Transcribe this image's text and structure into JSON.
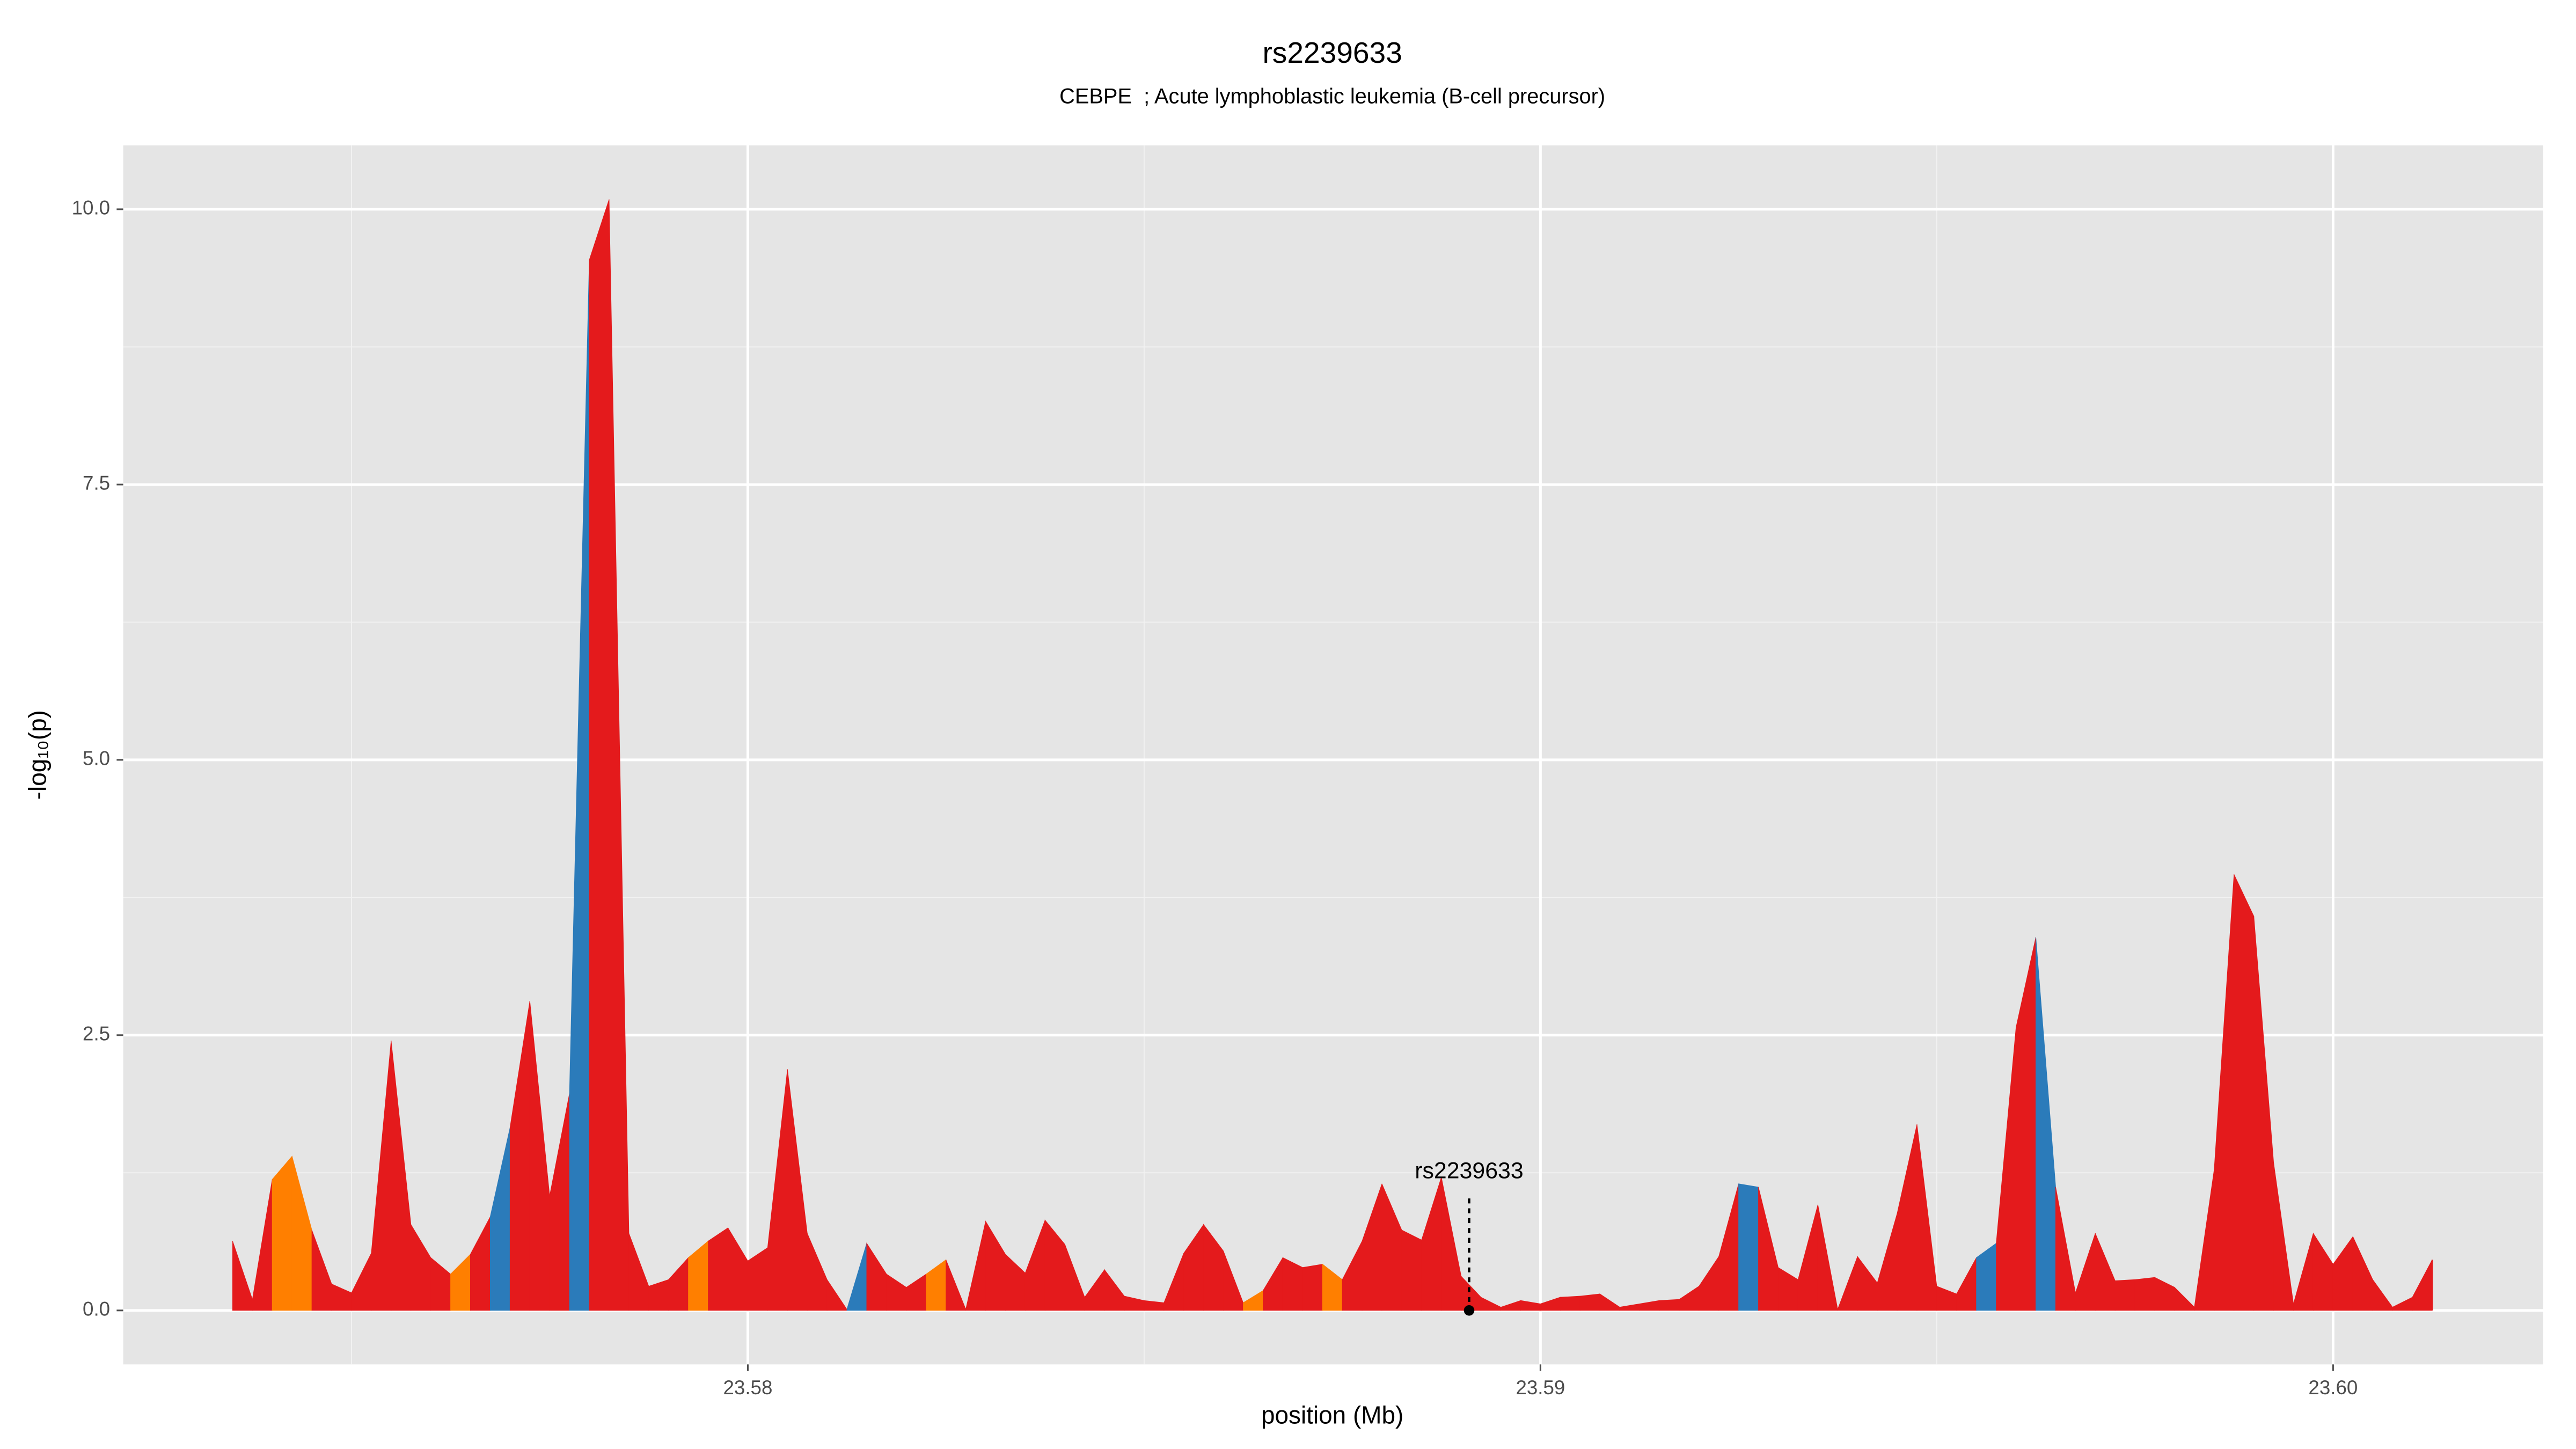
{
  "chart_data": {
    "type": "area",
    "title": "rs2239633",
    "subtitle": "CEBPE  ; Acute lymphoblastic leukemia (B-cell precursor)",
    "x_label": "position (Mb)",
    "y_label": "-log₁₀(p)",
    "xlim": [
      23.57212,
      23.60265
    ],
    "ylim": [
      -0.49,
      10.58
    ],
    "xticks": [
      23.58,
      23.59,
      {
        "value": 23.6,
        "label": "23.60"
      }
    ],
    "yticks": [
      {
        "value": 0,
        "label": "0.0"
      },
      {
        "value": 2.5,
        "label": "2.5"
      },
      {
        "value": 5,
        "label": "5.0"
      },
      {
        "value": 7.5,
        "label": "7.5"
      },
      {
        "value": 10,
        "label": "10.0"
      }
    ],
    "grid": true,
    "x": [
      23.5735,
      23.57375,
      23.574,
      23.57425,
      23.5745,
      23.57475,
      23.575,
      23.57525,
      23.5755,
      23.57575,
      23.576,
      23.57625,
      23.5765,
      23.57675,
      23.577,
      23.57725,
      23.5775,
      23.57775,
      23.578,
      23.57825,
      23.5785,
      23.57875,
      23.579,
      23.57925,
      23.5795,
      23.57975,
      23.58,
      23.58025,
      23.5805,
      23.58075,
      23.581,
      23.58125,
      23.5815,
      23.58175,
      23.582,
      23.58225,
      23.5825,
      23.58275,
      23.583,
      23.58325,
      23.5835,
      23.58375,
      23.584,
      23.58425,
      23.5845,
      23.58475,
      23.585,
      23.58525,
      23.5855,
      23.58575,
      23.586,
      23.58625,
      23.5865,
      23.58675,
      23.587,
      23.58725,
      23.5875,
      23.58775,
      23.588,
      23.58825,
      23.5885,
      23.58875,
      23.589,
      23.58925,
      23.5895,
      23.58975,
      23.59,
      23.59025,
      23.5905,
      23.59075,
      23.591,
      23.59125,
      23.5915,
      23.59175,
      23.592,
      23.59225,
      23.5925,
      23.59275,
      23.593,
      23.59325,
      23.5935,
      23.59375,
      23.594,
      23.59425,
      23.5945,
      23.59475,
      23.595,
      23.59525,
      23.5955,
      23.59575,
      23.596,
      23.59625,
      23.5965,
      23.59675,
      23.597,
      23.59725,
      23.5975,
      23.59775,
      23.598,
      23.59825,
      23.5985,
      23.59875,
      23.599,
      23.59925,
      23.5995,
      23.59975,
      23.6,
      23.60025,
      23.6005,
      23.60075,
      23.601,
      23.60125
    ],
    "values": [
      0.63,
      0.1,
      1.19,
      1.4,
      0.73,
      0.24,
      0.16,
      0.52,
      2.45,
      0.78,
      0.48,
      0.33,
      0.51,
      0.85,
      1.66,
      2.81,
      1.04,
      1.97,
      9.54,
      10.09,
      0.7,
      0.22,
      0.28,
      0.48,
      0.63,
      0.75,
      0.45,
      0.57,
      2.19,
      0.7,
      0.28,
      0.01,
      0.61,
      0.33,
      0.21,
      0.33,
      0.46,
      0.01,
      0.81,
      0.51,
      0.34,
      0.82,
      0.6,
      0.12,
      0.37,
      0.13,
      0.09,
      0.07,
      0.52,
      0.78,
      0.54,
      0.07,
      0.18,
      0.48,
      0.39,
      0.42,
      0.28,
      0.63,
      1.15,
      0.73,
      0.64,
      1.21,
      0.31,
      0.12,
      0.03,
      0.09,
      0.06,
      0.12,
      0.13,
      0.15,
      0.03,
      0.06,
      0.09,
      0.1,
      0.22,
      0.49,
      1.15,
      1.12,
      0.39,
      0.28,
      0.96,
      0.01,
      0.49,
      0.25,
      0.88,
      1.69,
      0.22,
      0.15,
      0.48,
      0.61,
      2.57,
      3.39,
      1.12,
      0.16,
      0.7,
      0.27,
      0.28,
      0.3,
      0.21,
      0.03,
      1.28,
      3.96,
      3.58,
      1.34,
      0.06,
      0.7,
      0.42,
      0.67,
      0.28,
      0.03,
      0.12,
      0.46
    ],
    "colors": [
      "#e41a1c",
      "#e41a1c",
      "#ff7f00",
      "#ff7f00",
      "#e41a1c",
      "#e41a1c",
      "#e41a1c",
      "#e41a1c",
      "#e41a1c",
      "#e41a1c",
      "#e41a1c",
      "#ff7f00",
      "#e41a1c",
      "#2b7bba",
      "#e41a1c",
      "#e41a1c",
      "#e41a1c",
      "#2b7bba",
      "#e41a1c",
      "#e41a1c",
      "#e41a1c",
      "#e41a1c",
      "#e41a1c",
      "#ff7f00",
      "#e41a1c",
      "#e41a1c",
      "#e41a1c",
      "#e41a1c",
      "#e41a1c",
      "#e41a1c",
      "#e41a1c",
      "#2b7bba",
      "#e41a1c",
      "#e41a1c",
      "#e41a1c",
      "#ff7f00",
      "#e41a1c",
      "#e41a1c",
      "#e41a1c",
      "#e41a1c",
      "#e41a1c",
      "#e41a1c",
      "#e41a1c",
      "#e41a1c",
      "#e41a1c",
      "#e41a1c",
      "#e41a1c",
      "#e41a1c",
      "#e41a1c",
      "#e41a1c",
      "#e41a1c",
      "#ff7f00",
      "#e41a1c",
      "#e41a1c",
      "#e41a1c",
      "#ff7f00",
      "#e41a1c",
      "#e41a1c",
      "#e41a1c",
      "#e41a1c",
      "#e41a1c",
      "#e41a1c",
      "#e41a1c",
      "#e41a1c",
      "#e41a1c",
      "#e41a1c",
      "#e41a1c",
      "#e41a1c",
      "#e41a1c",
      "#e41a1c",
      "#e41a1c",
      "#e41a1c",
      "#e41a1c",
      "#e41a1c",
      "#e41a1c",
      "#e41a1c",
      "#2b7bba",
      "#e41a1c",
      "#e41a1c",
      "#e41a1c",
      "#e41a1c",
      "#e41a1c",
      "#e41a1c",
      "#e41a1c",
      "#e41a1c",
      "#e41a1c",
      "#e41a1c",
      "#e41a1c",
      "#2b7bba",
      "#e41a1c",
      "#e41a1c",
      "#2b7bba",
      "#e41a1c",
      "#e41a1c",
      "#e41a1c",
      "#e41a1c",
      "#e41a1c",
      "#e41a1c",
      "#e41a1c",
      "#e41a1c",
      "#e41a1c",
      "#e41a1c",
      "#e41a1c",
      "#e41a1c",
      "#e41a1c",
      "#e41a1c",
      "#e41a1c",
      "#e41a1c",
      "#e41a1c",
      "#e41a1c",
      "#e41a1c",
      "#e41a1c"
    ],
    "annotation": {
      "text": "rs2239633",
      "x": 23.5891,
      "y": 0
    }
  }
}
